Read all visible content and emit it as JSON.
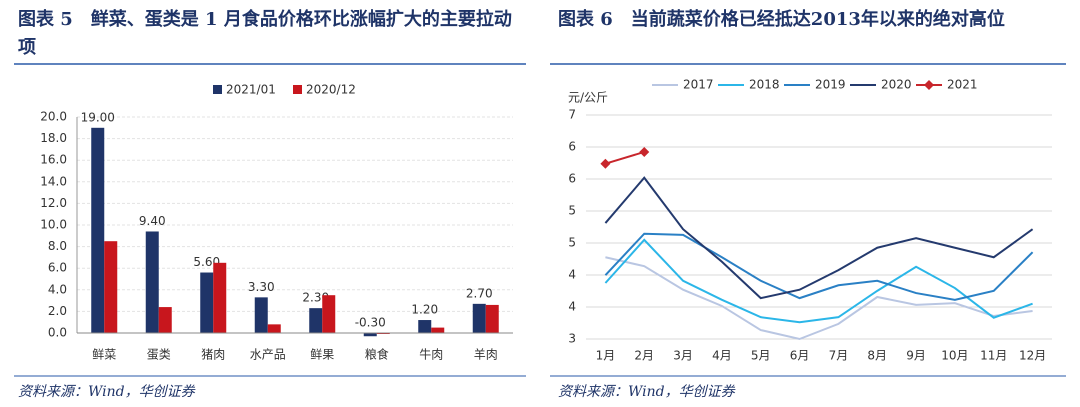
{
  "chart_data": [
    {
      "type": "bar",
      "title": "图表 5　鲜菜、蛋类是 1 月食品价格环比涨幅扩大的主要拉动项",
      "source": "资料来源：Wind，华创证券",
      "categories": [
        "鲜菜",
        "蛋类",
        "猪肉",
        "水产品",
        "鲜果",
        "粮食",
        "牛肉",
        "羊肉"
      ],
      "series": [
        {
          "name": "2021/01",
          "color": "#1f3468",
          "values": [
            19.0,
            9.4,
            5.6,
            3.3,
            2.3,
            -0.3,
            1.2,
            2.7
          ],
          "value_labels": [
            "19.00",
            "9.40",
            "5.60",
            "3.30",
            "2.30",
            "-0.30",
            "1.20",
            "2.70"
          ]
        },
        {
          "name": "2020/12",
          "color": "#c8161d",
          "values": [
            8.5,
            2.4,
            6.5,
            0.8,
            3.5,
            0,
            0.5,
            2.6
          ]
        }
      ],
      "ylim": [
        0,
        20
      ],
      "yticks": [
        {
          "value": 0,
          "label": "0.0"
        },
        {
          "value": 2,
          "label": "2.0"
        },
        {
          "value": 4,
          "label": "4.0"
        },
        {
          "value": 6,
          "label": "6.0"
        },
        {
          "value": 8,
          "label": "8.0"
        },
        {
          "value": 10,
          "label": "10.0"
        },
        {
          "value": 12,
          "label": "12.0"
        },
        {
          "value": 14,
          "label": "14.0"
        },
        {
          "value": 16,
          "label": "16.0"
        },
        {
          "value": 18,
          "label": "18.0"
        },
        {
          "value": 20,
          "label": "20.0"
        }
      ],
      "grid": true
    },
    {
      "type": "line",
      "title": "图表 6　当前蔬菜价格已经抵达2013年以来的绝对高位",
      "source": "资料来源：Wind，华创证券",
      "y_label": "元/公斤",
      "categories": [
        "1月",
        "2月",
        "3月",
        "4月",
        "5月",
        "6月",
        "7月",
        "8月",
        "9月",
        "10月",
        "11月",
        "12月"
      ],
      "series": [
        {
          "name": "2017",
          "color": "#b9c6e2",
          "values": [
            4.46,
            4.3,
            3.88,
            3.59,
            3.16,
            3.0,
            3.27,
            3.75,
            3.61,
            3.64,
            3.41,
            3.5
          ]
        },
        {
          "name": "2018",
          "color": "#2bb6e8",
          "values": [
            4.0,
            4.77,
            4.04,
            3.7,
            3.39,
            3.3,
            3.39,
            3.86,
            4.29,
            3.91,
            3.38,
            3.63
          ]
        },
        {
          "name": "2019",
          "color": "#2a80c5",
          "values": [
            4.14,
            4.88,
            4.86,
            4.46,
            4.04,
            3.73,
            3.96,
            4.04,
            3.82,
            3.7,
            3.86,
            4.55
          ]
        },
        {
          "name": "2020",
          "color": "#243a6e",
          "values": [
            5.07,
            5.88,
            4.96,
            4.38,
            3.73,
            3.88,
            4.23,
            4.63,
            4.8,
            4.63,
            4.46,
            4.96
          ]
        },
        {
          "name": "2021",
          "color": "#c8262c",
          "marker": "diamond",
          "values": [
            6.13,
            6.34,
            null,
            null,
            null,
            null,
            null,
            null,
            null,
            null,
            null,
            null
          ]
        }
      ],
      "ylim": [
        3,
        7
      ],
      "yticks": [
        3,
        {
          "value": 3.571,
          "label": "4"
        },
        {
          "value": 4.143,
          "label": "4"
        },
        {
          "value": 4.714,
          "label": "5"
        },
        {
          "value": 5.286,
          "label": "5"
        },
        {
          "value": 5.857,
          "label": "6"
        },
        {
          "value": 6.429,
          "label": "6"
        },
        7
      ],
      "grid": true
    }
  ]
}
